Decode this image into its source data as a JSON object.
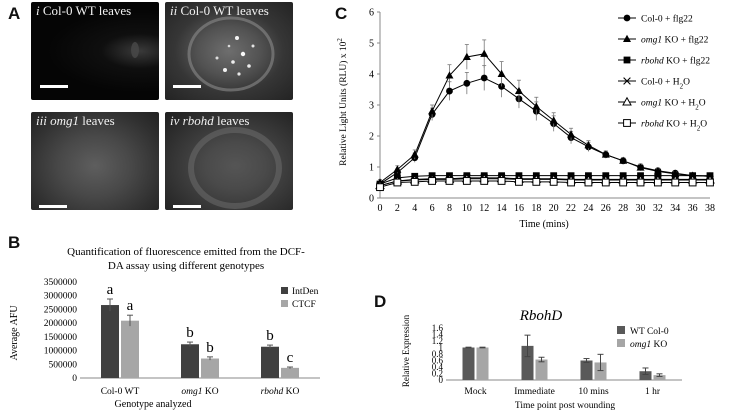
{
  "panel_labels": {
    "a": "A",
    "b": "B",
    "c": "C",
    "d": "D"
  },
  "micrographs": [
    {
      "id": "i",
      "numeral": "i",
      "text": "Col-0 WT leaves",
      "italic": ""
    },
    {
      "id": "ii",
      "numeral": "ii",
      "text": "Col-0 WT leaves",
      "italic": ""
    },
    {
      "id": "iii",
      "numeral": "iii",
      "text": "leaves",
      "italic": "omg1"
    },
    {
      "id": "iv",
      "numeral": "iv",
      "text": "leaves",
      "italic": "rbohd"
    }
  ],
  "chart_data": [
    {
      "id": "B",
      "type": "bar",
      "title": "Quantification of fluorescence emitted from the DCF-DA assay using different genotypes",
      "title_lines": [
        "Quantification of fluorescence emitted from the DCF-",
        "DA assay using different genotypes"
      ],
      "xlabel": "Genotype analyzed",
      "ylabel": "Average AFU",
      "categories": [
        "Col-0 WT",
        "omg1 KO",
        "rbohd KO"
      ],
      "category_parts": [
        [
          "Col-0 WT",
          ""
        ],
        [
          "omg1",
          " KO"
        ],
        [
          "rbohd",
          " KO"
        ]
      ],
      "ylim": [
        0,
        3500000
      ],
      "yticks": [
        0,
        500000,
        1000000,
        1500000,
        2000000,
        2500000,
        3000000,
        3500000
      ],
      "ytick_labels": [
        "0",
        "500000",
        "1000000",
        "1500000",
        "2000000",
        "2500000",
        "3000000",
        "3500000"
      ],
      "series": [
        {
          "name": "IntDen",
          "values": [
            2660000,
            1230000,
            1140000
          ],
          "errors": [
            220000,
            80000,
            60000
          ],
          "letters": [
            "a",
            "b",
            "b"
          ],
          "color": "#404040"
        },
        {
          "name": "CTCF",
          "values": [
            2090000,
            710000,
            370000
          ],
          "errors": [
            200000,
            60000,
            30000
          ],
          "letters": [
            "a",
            "b",
            "c"
          ],
          "color": "#a6a6a6"
        }
      ],
      "legend_position": "top-right",
      "grid": false
    },
    {
      "id": "C",
      "type": "line",
      "xlabel": "Time (mins)",
      "ylabel_parts": [
        "Relative Light Units (RLU) x 10",
        "2"
      ],
      "x": [
        0,
        2,
        4,
        6,
        8,
        10,
        12,
        14,
        16,
        18,
        20,
        22,
        24,
        26,
        28,
        30,
        32,
        34,
        36,
        38
      ],
      "xlim": [
        0,
        38
      ],
      "xticks": [
        0,
        2,
        4,
        6,
        8,
        10,
        12,
        14,
        16,
        18,
        20,
        22,
        24,
        26,
        28,
        30,
        32,
        34,
        36,
        38
      ],
      "ylim": [
        0,
        6
      ],
      "yticks": [
        0,
        1,
        2,
        3,
        4,
        5,
        6
      ],
      "series": [
        {
          "name": "Col-0 + flg22",
          "name_parts": [
            "Col-0 + flg22",
            "",
            "",
            ""
          ],
          "marker": "circle",
          "values": [
            0.45,
            0.82,
            1.3,
            2.7,
            3.45,
            3.7,
            3.87,
            3.6,
            3.2,
            2.8,
            2.4,
            1.95,
            1.65,
            1.4,
            1.2,
            1.0,
            0.88,
            0.8,
            0.72,
            0.7
          ],
          "errors": [
            0.1,
            0.12,
            0.15,
            0.2,
            0.3,
            0.35,
            0.4,
            0.35,
            0.3,
            0.3,
            0.25,
            0.2,
            0.15,
            0.1,
            0.1,
            0.1,
            0.08,
            0.06,
            0.05,
            0.05
          ]
        },
        {
          "name": "omg1 KO + flg22",
          "name_parts": [
            "",
            "omg1",
            " KO + flg22",
            ""
          ],
          "marker": "triangle",
          "values": [
            0.5,
            0.92,
            1.4,
            2.8,
            3.95,
            4.55,
            4.65,
            4.0,
            3.45,
            2.95,
            2.5,
            2.05,
            1.7,
            1.4,
            1.2,
            0.98,
            0.86,
            0.78,
            0.72,
            0.7
          ],
          "errors": [
            0.1,
            0.12,
            0.15,
            0.2,
            0.35,
            0.4,
            0.45,
            0.4,
            0.35,
            0.3,
            0.25,
            0.2,
            0.15,
            0.12,
            0.1,
            0.1,
            0.08,
            0.06,
            0.05,
            0.05
          ]
        },
        {
          "name": "rbohd KO + flg22",
          "name_parts": [
            "",
            "rbohd",
            " KO + flg22",
            ""
          ],
          "marker": "square",
          "values": [
            0.45,
            0.65,
            0.7,
            0.72,
            0.72,
            0.72,
            0.72,
            0.72,
            0.72,
            0.72,
            0.72,
            0.72,
            0.72,
            0.72,
            0.72,
            0.72,
            0.72,
            0.72,
            0.72,
            0.72
          ],
          "errors": [
            0.05,
            0.05,
            0.05,
            0.05,
            0.05,
            0.05,
            0.05,
            0.05,
            0.05,
            0.05,
            0.05,
            0.05,
            0.05,
            0.05,
            0.05,
            0.05,
            0.05,
            0.05,
            0.05,
            0.05
          ]
        },
        {
          "name": "Col-0 + H2O",
          "name_parts": [
            "Col-0 + H",
            "",
            "",
            "2O"
          ],
          "marker": "x",
          "values": [
            0.4,
            0.55,
            0.6,
            0.62,
            0.62,
            0.65,
            0.65,
            0.65,
            0.62,
            0.62,
            0.62,
            0.6,
            0.6,
            0.6,
            0.6,
            0.6,
            0.6,
            0.6,
            0.6,
            0.6
          ],
          "errors": [
            0.05,
            0.05,
            0.05,
            0.05,
            0.05,
            0.05,
            0.05,
            0.05,
            0.05,
            0.05,
            0.05,
            0.05,
            0.05,
            0.05,
            0.05,
            0.05,
            0.05,
            0.05,
            0.05,
            0.05
          ]
        },
        {
          "name": "omg1 KO + H2O",
          "name_parts": [
            "",
            "omg1",
            " KO + H",
            "2O"
          ],
          "marker": "triangle-open",
          "values": [
            0.4,
            0.55,
            0.58,
            0.6,
            0.6,
            0.62,
            0.62,
            0.62,
            0.6,
            0.6,
            0.6,
            0.58,
            0.58,
            0.58,
            0.58,
            0.58,
            0.58,
            0.58,
            0.58,
            0.58
          ],
          "errors": [
            0.05,
            0.05,
            0.05,
            0.05,
            0.05,
            0.05,
            0.05,
            0.05,
            0.05,
            0.05,
            0.05,
            0.05,
            0.05,
            0.05,
            0.05,
            0.05,
            0.05,
            0.05,
            0.05,
            0.05
          ]
        },
        {
          "name": "rbohd KO + H2O",
          "name_parts": [
            "",
            "rbohd",
            " KO + H",
            "2O"
          ],
          "marker": "square-open",
          "values": [
            0.35,
            0.5,
            0.52,
            0.55,
            0.55,
            0.55,
            0.55,
            0.55,
            0.52,
            0.52,
            0.52,
            0.5,
            0.5,
            0.5,
            0.5,
            0.5,
            0.5,
            0.5,
            0.5,
            0.5
          ],
          "errors": [
            0.05,
            0.05,
            0.05,
            0.05,
            0.05,
            0.05,
            0.05,
            0.05,
            0.05,
            0.05,
            0.05,
            0.05,
            0.05,
            0.05,
            0.05,
            0.05,
            0.05,
            0.05,
            0.05,
            0.05
          ]
        }
      ],
      "legend_position": "right",
      "grid": false
    },
    {
      "id": "D",
      "type": "bar",
      "title": "RbohD",
      "xlabel": "Time point post wounding",
      "ylabel": "Relative Expression",
      "categories": [
        "Mock",
        "Immediate",
        "10 mins",
        "1 hr"
      ],
      "ylim": [
        0,
        1.6
      ],
      "yticks": [
        0,
        0.2,
        0.4,
        0.6,
        0.8,
        1,
        1.2,
        1.4,
        1.6
      ],
      "ytick_labels": [
        "0",
        "0.2",
        "0.4",
        "0.6",
        "0.8",
        "1",
        "1.2",
        "1.4",
        "1.6"
      ],
      "series": [
        {
          "name": "WT Col-0",
          "name_parts": [
            "WT Col-0",
            ""
          ],
          "values": [
            1.0,
            1.05,
            0.6,
            0.27
          ],
          "errors": [
            0.01,
            0.33,
            0.06,
            0.1
          ],
          "color": "#595959"
        },
        {
          "name": "omg1 KO",
          "name_parts": [
            "omg1",
            " KO"
          ],
          "values": [
            1.0,
            0.63,
            0.54,
            0.15
          ],
          "errors": [
            0.01,
            0.07,
            0.25,
            0.04
          ],
          "color": "#a6a6a6"
        }
      ],
      "legend_position": "top-right",
      "grid": false
    }
  ]
}
